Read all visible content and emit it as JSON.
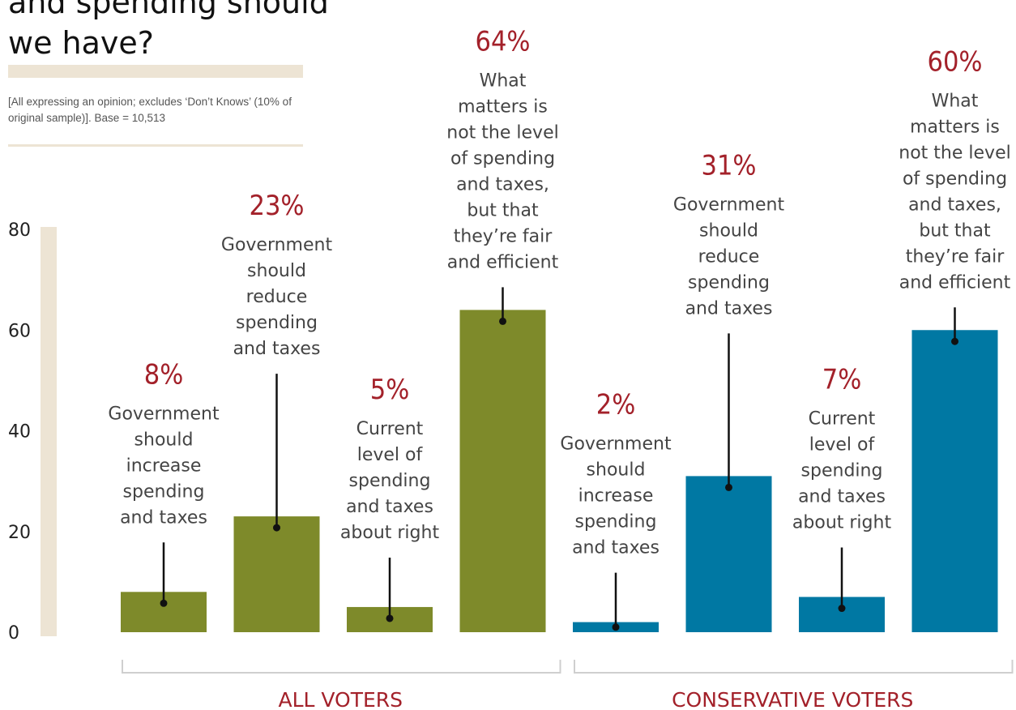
{
  "title": "and spending should\nwe have?",
  "note": "[All expressing an opinion; excludes ‘Don’t Knows’ (10% of original sample)]. Base = 10,513",
  "colors": {
    "all_voters": "#7e8a2a",
    "conservative_voters": "#0078a3",
    "highlight": "#a3212a",
    "axis_band": "#ede4d4"
  },
  "chart_data": {
    "type": "bar",
    "ylim": [
      0,
      80
    ],
    "yticks": [
      0,
      20,
      40,
      60,
      80
    ],
    "groups": [
      {
        "name": "ALL VOTERS",
        "color": "#7e8a2a",
        "bars": [
          {
            "value": 8,
            "label": "8%",
            "category": "Government\nshould\nincrease\nspending\nand taxes"
          },
          {
            "value": 23,
            "label": "23%",
            "category": "Government\nshould\nreduce\nspending\nand taxes"
          },
          {
            "value": 5,
            "label": "5%",
            "category": "Current\nlevel of\nspending\nand taxes\nabout right"
          },
          {
            "value": 64,
            "label": "64%",
            "category": "What\nmatters is\nnot the level\nof spending\nand taxes,\nbut that\nthey’re fair\nand efficient"
          }
        ]
      },
      {
        "name": "CONSERVATIVE  VOTERS",
        "color": "#0078a3",
        "bars": [
          {
            "value": 2,
            "label": "2%",
            "category": "Government\nshould\nincrease\nspending\nand taxes"
          },
          {
            "value": 31,
            "label": "31%",
            "category": "Government\nshould\nreduce\nspending\nand taxes"
          },
          {
            "value": 7,
            "label": "7%",
            "category": "Current\nlevel of\nspending\nand taxes\nabout right"
          },
          {
            "value": 60,
            "label": "60%",
            "category": "What\nmatters is\nnot the level\nof spending\nand taxes,\nbut that\nthey’re fair\nand efficient"
          }
        ]
      }
    ]
  }
}
